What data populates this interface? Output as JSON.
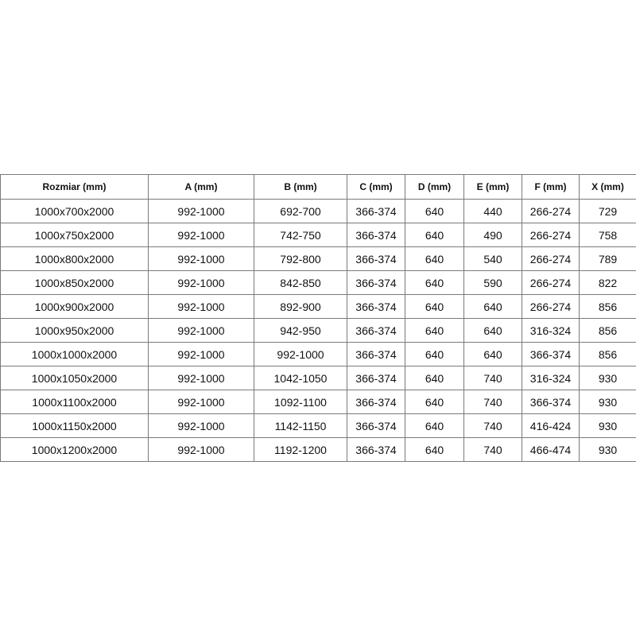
{
  "table": {
    "headers": [
      "Rozmiar (mm)",
      "A (mm)",
      "B (mm)",
      "C (mm)",
      "D (mm)",
      "E (mm)",
      "F (mm)",
      "X (mm)"
    ],
    "rows": [
      [
        "1000x700x2000",
        "992-1000",
        "692-700",
        "366-374",
        "640",
        "440",
        "266-274",
        "729"
      ],
      [
        "1000x750x2000",
        "992-1000",
        "742-750",
        "366-374",
        "640",
        "490",
        "266-274",
        "758"
      ],
      [
        "1000x800x2000",
        "992-1000",
        "792-800",
        "366-374",
        "640",
        "540",
        "266-274",
        "789"
      ],
      [
        "1000x850x2000",
        "992-1000",
        "842-850",
        "366-374",
        "640",
        "590",
        "266-274",
        "822"
      ],
      [
        "1000x900x2000",
        "992-1000",
        "892-900",
        "366-374",
        "640",
        "640",
        "266-274",
        "856"
      ],
      [
        "1000x950x2000",
        "992-1000",
        "942-950",
        "366-374",
        "640",
        "640",
        "316-324",
        "856"
      ],
      [
        "1000x1000x2000",
        "992-1000",
        "992-1000",
        "366-374",
        "640",
        "640",
        "366-374",
        "856"
      ],
      [
        "1000x1050x2000",
        "992-1000",
        "1042-1050",
        "366-374",
        "640",
        "740",
        "316-324",
        "930"
      ],
      [
        "1000x1100x2000",
        "992-1000",
        "1092-1100",
        "366-374",
        "640",
        "740",
        "366-374",
        "930"
      ],
      [
        "1000x1150x2000",
        "992-1000",
        "1142-1150",
        "366-374",
        "640",
        "740",
        "416-424",
        "930"
      ],
      [
        "1000x1200x2000",
        "992-1000",
        "1192-1200",
        "366-374",
        "640",
        "740",
        "466-474",
        "930"
      ]
    ]
  }
}
